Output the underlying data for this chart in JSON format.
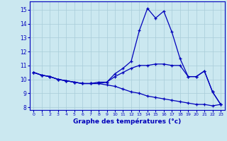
{
  "xlabel": "Graphe des températures (°c)",
  "background_color": "#cbe8f0",
  "grid_color": "#a8ccd8",
  "line_color": "#0000bb",
  "xlim": [
    -0.5,
    23.5
  ],
  "ylim": [
    7.8,
    15.6
  ],
  "yticks": [
    8,
    9,
    10,
    11,
    12,
    13,
    14,
    15
  ],
  "xticks": [
    0,
    1,
    2,
    3,
    4,
    5,
    6,
    7,
    8,
    9,
    10,
    11,
    12,
    13,
    14,
    15,
    16,
    17,
    18,
    19,
    20,
    21,
    22,
    23
  ],
  "line1_x": [
    0,
    1,
    2,
    3,
    4,
    5,
    6,
    7,
    8,
    9,
    10,
    11,
    12,
    13,
    14,
    15,
    16,
    17,
    18,
    19,
    20,
    21,
    22,
    23
  ],
  "line1_y": [
    10.5,
    10.3,
    10.2,
    10.0,
    9.9,
    9.8,
    9.7,
    9.7,
    9.7,
    9.8,
    10.4,
    10.8,
    11.3,
    13.5,
    15.1,
    14.4,
    14.9,
    13.4,
    11.5,
    10.2,
    10.2,
    10.6,
    9.1,
    8.2
  ],
  "line2_x": [
    0,
    1,
    2,
    3,
    4,
    5,
    6,
    7,
    8,
    9,
    10,
    11,
    12,
    13,
    14,
    15,
    16,
    17,
    18,
    19,
    20,
    21,
    22,
    23
  ],
  "line2_y": [
    10.5,
    10.3,
    10.2,
    10.0,
    9.9,
    9.8,
    9.7,
    9.7,
    9.8,
    9.8,
    10.2,
    10.5,
    10.8,
    11.0,
    11.0,
    11.1,
    11.1,
    11.0,
    11.0,
    10.2,
    10.2,
    10.6,
    9.1,
    8.2
  ],
  "line3_x": [
    0,
    1,
    2,
    3,
    4,
    5,
    6,
    7,
    8,
    9,
    10,
    11,
    12,
    13,
    14,
    15,
    16,
    17,
    18,
    19,
    20,
    21,
    22,
    23
  ],
  "line3_y": [
    10.5,
    10.3,
    10.2,
    10.0,
    9.9,
    9.8,
    9.7,
    9.7,
    9.7,
    9.6,
    9.5,
    9.3,
    9.1,
    9.0,
    8.8,
    8.7,
    8.6,
    8.5,
    8.4,
    8.3,
    8.2,
    8.2,
    8.1,
    8.2
  ]
}
